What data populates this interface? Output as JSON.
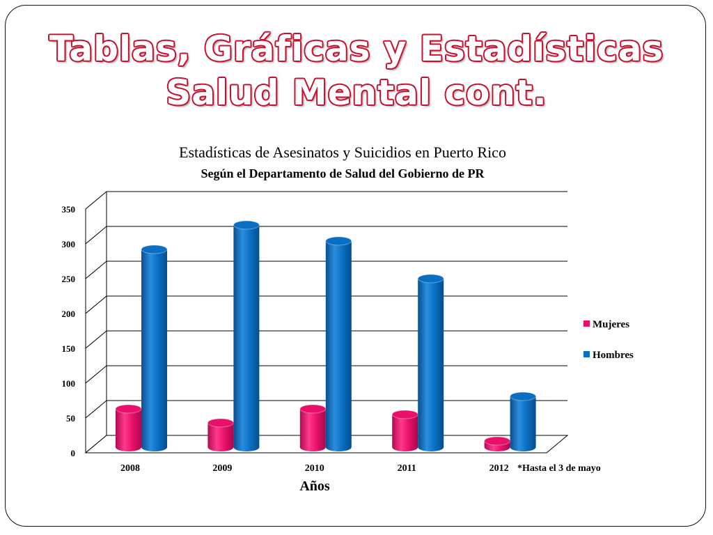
{
  "slide": {
    "title_line1": "Tablas, Gráficas y Estadísticas",
    "title_line2": "Salud Mental cont."
  },
  "colors": {
    "mujeres": "#e8106a",
    "hombres": "#0a6fc2",
    "title_outline": "#c8102e"
  },
  "chart_data": {
    "type": "bar",
    "title": "Estadísticas de Asesinatos y Suicidios en Puerto Rico",
    "subtitle": "Según el Departamento de Salud del Gobierno de PR",
    "xlabel": "Años",
    "ylabel": "",
    "categories": [
      "2008",
      "2009",
      "2010",
      "2011",
      "2012"
    ],
    "series": [
      {
        "name": "Mujeres",
        "values": [
          55,
          35,
          55,
          47,
          9
        ]
      },
      {
        "name": "Hombres",
        "values": [
          284,
          319,
          296,
          242,
          73
        ]
      }
    ],
    "ylim": [
      0,
      350
    ],
    "yticks": [
      "0",
      "50",
      "100",
      "150",
      "200",
      "250",
      "300",
      "350"
    ],
    "grid": true,
    "legend_position": "right",
    "annotation": "*Hasta el 3 de mayo"
  }
}
